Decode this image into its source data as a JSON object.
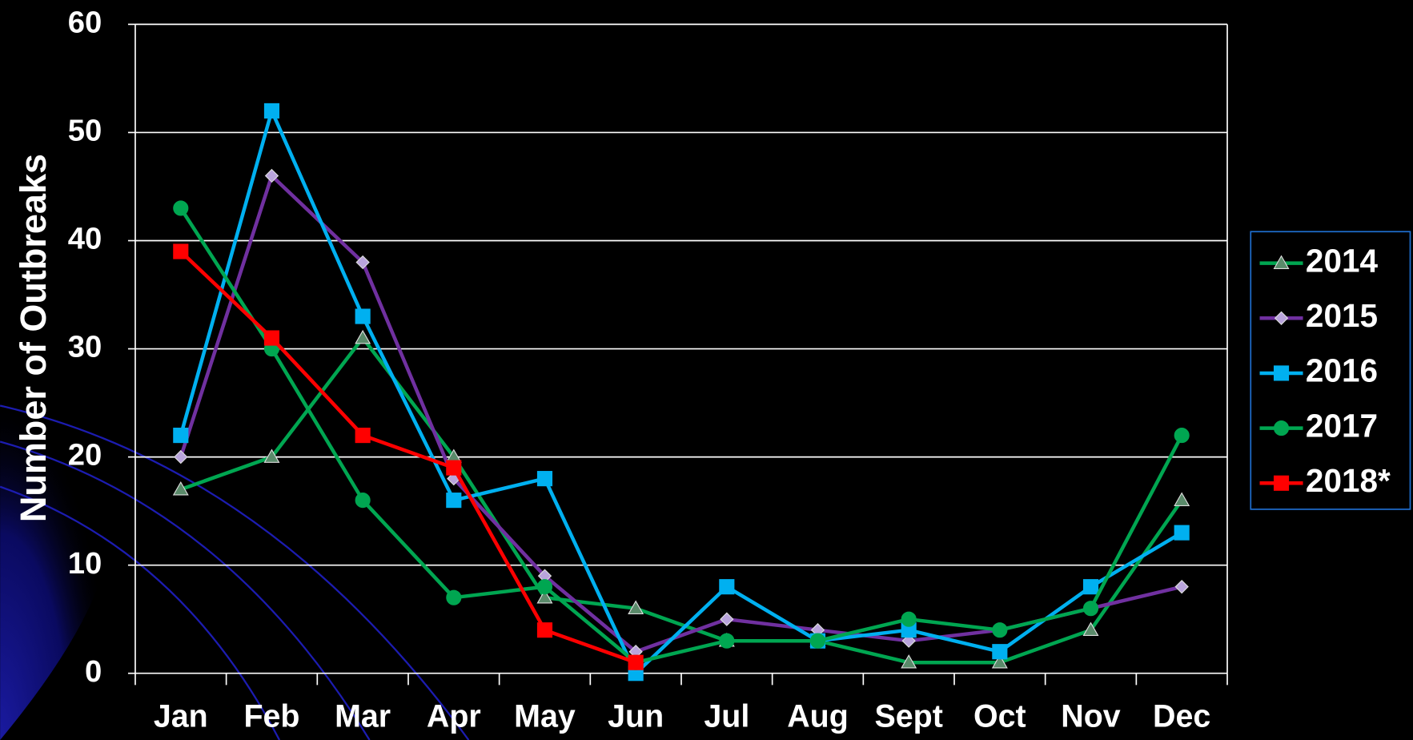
{
  "chart_data": {
    "type": "line",
    "y_label": "Number of Outbreaks",
    "categories": [
      "Jan",
      "Feb",
      "Mar",
      "Apr",
      "May",
      "Jun",
      "Jul",
      "Aug",
      "Sept",
      "Oct",
      "Nov",
      "Dec"
    ],
    "ylim": [
      0,
      60
    ],
    "yticks": [
      0,
      10,
      20,
      30,
      40,
      50,
      60
    ],
    "grid": true,
    "legend": "right",
    "series": [
      {
        "name": "2014",
        "color": "#00a651",
        "marker": "triangle",
        "marker_color": "#5a8a6a",
        "values": [
          17,
          20,
          31,
          20,
          7,
          6,
          3,
          3,
          1,
          1,
          4,
          16
        ]
      },
      {
        "name": "2015",
        "color": "#7030a0",
        "marker": "diamond",
        "marker_color": "#b9a4dc",
        "values": [
          20,
          46,
          38,
          18,
          9,
          2,
          5,
          4,
          3,
          4,
          6,
          8
        ]
      },
      {
        "name": "2016",
        "color": "#00b0f0",
        "marker": "square",
        "marker_color": "#00b0f0",
        "values": [
          22,
          52,
          33,
          16,
          18,
          0,
          8,
          3,
          4,
          2,
          8,
          13
        ]
      },
      {
        "name": "2017",
        "color": "#00a651",
        "marker": "circle",
        "marker_color": "#00a651",
        "values": [
          43,
          30,
          16,
          7,
          8,
          1,
          3,
          3,
          5,
          4,
          6,
          22
        ]
      },
      {
        "name": "2018*",
        "color": "#ff0000",
        "marker": "square",
        "marker_color": "#ff0000",
        "values": [
          39,
          31,
          22,
          19,
          4,
          1,
          null,
          null,
          null,
          null,
          null,
          null
        ]
      }
    ]
  }
}
